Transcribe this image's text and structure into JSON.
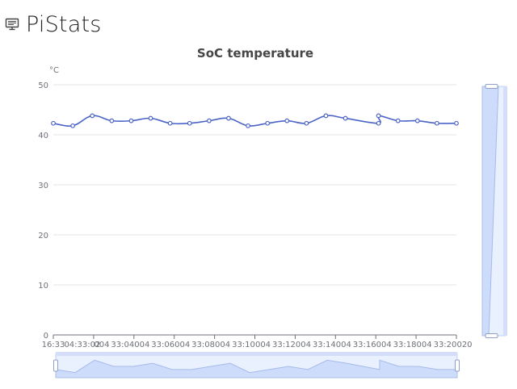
{
  "app": {
    "title": "PiStats",
    "icon": "monitor-icon"
  },
  "colors": {
    "series": "#4a63c7",
    "grid": "#e6e6e6",
    "axis": "#6e7079",
    "zoom_fill": "#dde6fb",
    "zoom_border": "#c6d3ef"
  },
  "chart_data": {
    "type": "line",
    "title": "SoC temperature",
    "y_unit": "°C",
    "ylim": [
      0,
      50
    ],
    "y_ticks": [
      0,
      10,
      20,
      30,
      40,
      50
    ],
    "x_tick_labels": [
      "16:33",
      "04:33:02",
      "004",
      "33:04",
      "004",
      "33:06",
      "004",
      "33:08",
      "004",
      "33:10",
      "004",
      "33:12",
      "004",
      "33:14",
      "004",
      "33:16",
      "004",
      "33:18",
      "004",
      "33:20",
      "020"
    ],
    "grid": true,
    "smooth": true,
    "series": [
      {
        "values": [
          42.3,
          41.8,
          43.8,
          42.8,
          42.8,
          43.3,
          42.3,
          42.3,
          42.8,
          43.3,
          41.8,
          42.3,
          42.8,
          42.3,
          43.8,
          43.3,
          42.3,
          43.8,
          42.8,
          42.8,
          42.3,
          42.3
        ]
      }
    ],
    "x_index": [
      0,
      1,
      2,
      3,
      4,
      5,
      6,
      7,
      8,
      9,
      10,
      11,
      12,
      13,
      14,
      15,
      16.7,
      16.7,
      17.7,
      18.7,
      19.7,
      20.7
    ],
    "datazoom": {
      "x_range": [
        0,
        100
      ],
      "y_range": [
        0,
        100
      ]
    }
  }
}
